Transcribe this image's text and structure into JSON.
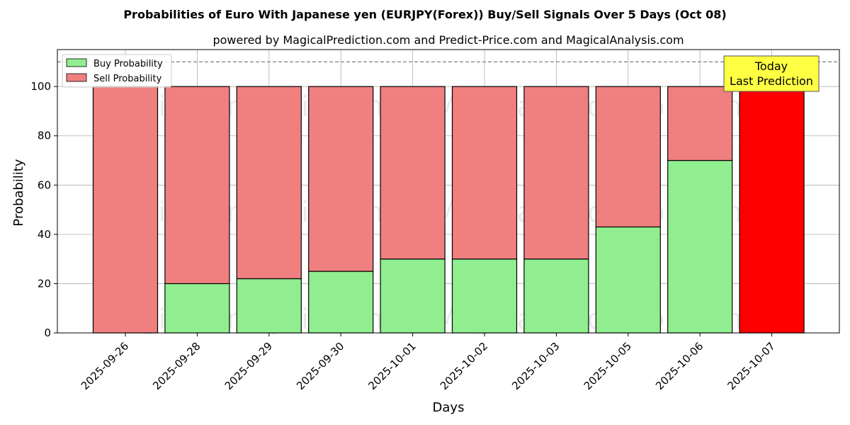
{
  "chart_data": {
    "type": "bar",
    "stacked": true,
    "title": "Probabilities of Euro With Japanese yen (EURJPY(Forex)) Buy/Sell Signals Over 5 Days (Oct 08)",
    "subtitle": "powered by MagicalPrediction.com and Predict-Price.com and MagicalAnalysis.com",
    "xlabel": "Days",
    "ylabel": "Probability",
    "ylim": [
      0,
      115
    ],
    "yticks": [
      0,
      20,
      40,
      60,
      80,
      100
    ],
    "grid": true,
    "legend_position": "top-left",
    "reference_line": 110,
    "categories": [
      "2025-09-26",
      "2025-09-28",
      "2025-09-29",
      "2025-09-30",
      "2025-10-01",
      "2025-10-02",
      "2025-10-03",
      "2025-10-05",
      "2025-10-06",
      "2025-10-07"
    ],
    "series": [
      {
        "name": "Buy Probability",
        "color": "#90ee90",
        "values": [
          0,
          20,
          22,
          25,
          30,
          30,
          30,
          43,
          70,
          0
        ]
      },
      {
        "name": "Sell Probability",
        "color": "#f08080",
        "values": [
          100,
          80,
          78,
          75,
          70,
          70,
          70,
          57,
          30,
          100
        ]
      }
    ],
    "highlight": {
      "category": "2025-10-07",
      "color": "#ff0000"
    },
    "annotation": {
      "lines": [
        "Today",
        "Last Prediction"
      ],
      "background": "#ffff44"
    },
    "watermarks": [
      "MagicalAnalysis.com",
      "MagicalPrediction.com"
    ]
  }
}
